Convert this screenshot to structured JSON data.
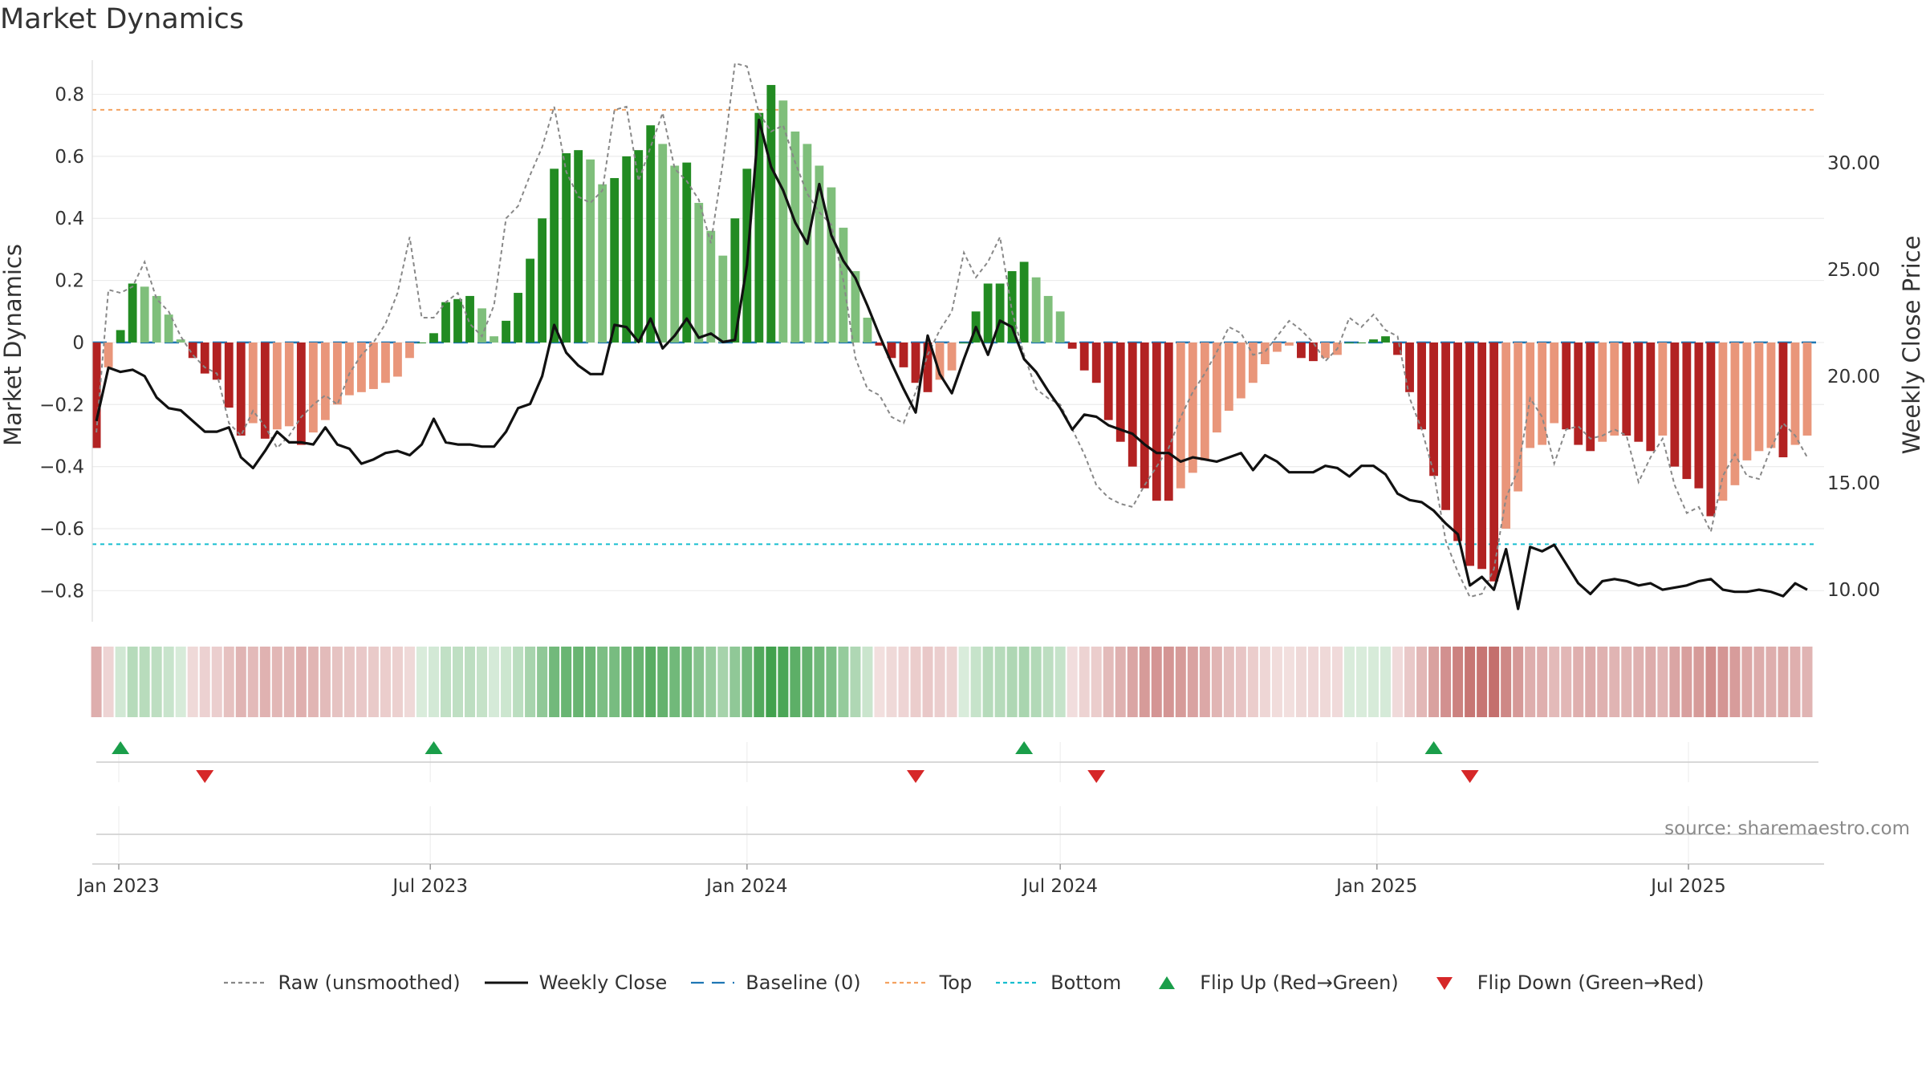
{
  "title": "Market Dynamics",
  "source": "source: sharemaestro.com",
  "legend": [
    {
      "label": "Raw (unsmoothed)",
      "icon": "dotted-line",
      "color": "#888888"
    },
    {
      "label": "Weekly Close",
      "icon": "solid-line",
      "color": "#111111"
    },
    {
      "label": "Baseline (0)",
      "icon": "dashed-line",
      "color": "#1f77b4"
    },
    {
      "label": "Top",
      "icon": "dotted-line",
      "color": "#f4a261"
    },
    {
      "label": "Bottom",
      "icon": "dotted-line",
      "color": "#17becf"
    },
    {
      "label": "Flip Up (Red→Green)",
      "icon": "triangle-up",
      "color": "#1a9e4a"
    },
    {
      "label": "Flip Down (Green→Red)",
      "icon": "triangle-down",
      "color": "#d62728"
    }
  ],
  "chart_data": {
    "type": "bar",
    "ylabel": "Market Dynamics",
    "y2label": "Weekly Close Price",
    "ylim": [
      -0.9,
      0.91
    ],
    "y2lim": [
      8.5,
      34.8
    ],
    "yticks": [
      "0.8",
      "0.6",
      "0.4",
      "0.2",
      "0",
      "−0.2",
      "−0.4",
      "−0.6",
      "−0.8"
    ],
    "yticks_values": [
      0.8,
      0.6,
      0.4,
      0.2,
      0,
      -0.2,
      -0.4,
      -0.6,
      -0.8
    ],
    "y2ticks": [
      "30.00",
      "25.00",
      "20.00",
      "15.00",
      "10.00"
    ],
    "y2ticks_values": [
      30,
      25,
      20,
      15,
      10
    ],
    "xticks": [
      "Jan 2023",
      "Jul 2023",
      "Jan 2024",
      "Jul 2024",
      "Jan 2025",
      "Jul 2025"
    ],
    "xticks_dates": [
      "2023-01-01",
      "2023-07-01",
      "2024-01-01",
      "2024-07-01",
      "2025-01-01",
      "2025-07-01"
    ],
    "top": 0.75,
    "bottom": -0.65,
    "baseline": 0,
    "start_date": "2022-12-19",
    "week_days": 7,
    "bar_values": [
      -0.34,
      -0.08,
      0.04,
      0.19,
      0.18,
      0.15,
      0.09,
      0.01,
      -0.05,
      -0.1,
      -0.12,
      -0.21,
      -0.3,
      -0.26,
      -0.31,
      -0.28,
      -0.27,
      -0.33,
      -0.29,
      -0.25,
      -0.2,
      -0.17,
      -0.16,
      -0.15,
      -0.13,
      -0.11,
      -0.05,
      0.0,
      0.03,
      0.13,
      0.14,
      0.15,
      0.11,
      0.02,
      0.07,
      0.16,
      0.27,
      0.4,
      0.56,
      0.61,
      0.62,
      0.59,
      0.51,
      0.53,
      0.6,
      0.62,
      0.7,
      0.64,
      0.57,
      0.58,
      0.45,
      0.36,
      0.28,
      0.4,
      0.56,
      0.74,
      0.83,
      0.78,
      0.68,
      0.64,
      0.57,
      0.5,
      0.37,
      0.23,
      0.08,
      -0.01,
      -0.05,
      -0.08,
      -0.13,
      -0.16,
      -0.12,
      -0.09,
      0.0,
      0.1,
      0.19,
      0.19,
      0.23,
      0.26,
      0.21,
      0.15,
      0.1,
      -0.02,
      -0.09,
      -0.13,
      -0.25,
      -0.32,
      -0.4,
      -0.47,
      -0.51,
      -0.51,
      -0.47,
      -0.42,
      -0.38,
      -0.29,
      -0.22,
      -0.18,
      -0.13,
      -0.07,
      -0.03,
      -0.01,
      -0.05,
      -0.06,
      -0.05,
      -0.04,
      0.0,
      0.0,
      0.01,
      0.02,
      -0.04,
      -0.16,
      -0.28,
      -0.43,
      -0.54,
      -0.64,
      -0.72,
      -0.73,
      -0.77,
      -0.6,
      -0.48,
      -0.34,
      -0.33,
      -0.26,
      -0.28,
      -0.33,
      -0.35,
      -0.32,
      -0.3,
      -0.3,
      -0.32,
      -0.35,
      -0.3,
      -0.4,
      -0.44,
      -0.47,
      -0.56,
      -0.51,
      -0.46,
      -0.38,
      -0.35,
      -0.34,
      -0.37,
      -0.33,
      -0.3
    ],
    "raw_values": [
      -0.29,
      0.17,
      0.16,
      0.18,
      0.26,
      0.14,
      0.1,
      0.02,
      -0.04,
      -0.08,
      -0.1,
      -0.26,
      -0.3,
      -0.22,
      -0.27,
      -0.34,
      -0.3,
      -0.24,
      -0.2,
      -0.17,
      -0.2,
      -0.1,
      -0.04,
      0.0,
      0.06,
      0.16,
      0.34,
      0.08,
      0.08,
      0.13,
      0.16,
      0.06,
      0.02,
      0.12,
      0.4,
      0.44,
      0.54,
      0.63,
      0.76,
      0.55,
      0.47,
      0.45,
      0.49,
      0.75,
      0.76,
      0.52,
      0.63,
      0.74,
      0.56,
      0.52,
      0.46,
      0.32,
      0.58,
      0.9,
      0.89,
      0.74,
      0.68,
      0.7,
      0.58,
      0.48,
      0.42,
      0.38,
      0.2,
      -0.05,
      -0.15,
      -0.17,
      -0.24,
      -0.26,
      -0.16,
      -0.04,
      0.04,
      0.1,
      0.29,
      0.21,
      0.26,
      0.34,
      0.1,
      -0.04,
      -0.15,
      -0.18,
      -0.2,
      -0.28,
      -0.36,
      -0.46,
      -0.5,
      -0.52,
      -0.53,
      -0.46,
      -0.4,
      -0.34,
      -0.24,
      -0.16,
      -0.1,
      -0.03,
      0.05,
      0.03,
      -0.04,
      -0.03,
      0.02,
      0.07,
      0.04,
      0.0,
      -0.06,
      -0.02,
      0.08,
      0.05,
      0.09,
      0.04,
      0.02,
      -0.18,
      -0.28,
      -0.42,
      -0.64,
      -0.74,
      -0.82,
      -0.81,
      -0.73,
      -0.5,
      -0.41,
      -0.18,
      -0.24,
      -0.39,
      -0.28,
      -0.27,
      -0.31,
      -0.3,
      -0.28,
      -0.3,
      -0.45,
      -0.37,
      -0.31,
      -0.46,
      -0.55,
      -0.53,
      -0.61,
      -0.43,
      -0.36,
      -0.43,
      -0.44,
      -0.34,
      -0.26,
      -0.3,
      -0.37
    ],
    "close_values": [
      17.9,
      20.4,
      20.2,
      20.3,
      20.0,
      19.0,
      18.5,
      18.4,
      17.9,
      17.4,
      17.4,
      17.6,
      16.2,
      15.7,
      16.5,
      17.4,
      16.9,
      16.9,
      16.8,
      17.6,
      16.8,
      16.6,
      15.9,
      16.1,
      16.4,
      16.5,
      16.3,
      16.8,
      18.0,
      16.9,
      16.8,
      16.8,
      16.7,
      16.7,
      17.4,
      18.5,
      18.7,
      20.0,
      22.4,
      21.1,
      20.5,
      20.1,
      20.1,
      22.4,
      22.3,
      21.6,
      22.7,
      21.3,
      21.9,
      22.7,
      21.8,
      22.0,
      21.6,
      21.7,
      25.2,
      32.0,
      29.8,
      28.7,
      27.2,
      26.2,
      29.0,
      26.6,
      25.4,
      24.6,
      23.3,
      21.9,
      20.6,
      19.4,
      18.3,
      21.9,
      20.1,
      19.2,
      20.8,
      22.3,
      21.0,
      22.6,
      22.3,
      20.8,
      20.2,
      19.3,
      18.5,
      17.5,
      18.2,
      18.1,
      17.7,
      17.5,
      17.3,
      16.8,
      16.4,
      16.4,
      16.0,
      16.2,
      16.1,
      16.0,
      16.2,
      16.4,
      15.6,
      16.3,
      16.0,
      15.5,
      15.5,
      15.5,
      15.8,
      15.7,
      15.3,
      15.8,
      15.8,
      15.4,
      14.5,
      14.2,
      14.1,
      13.7,
      13.1,
      12.6,
      10.2,
      10.6,
      10.0,
      11.9,
      9.1,
      12.0,
      11.8,
      12.1,
      11.2,
      10.3,
      9.8,
      10.4,
      10.5,
      10.4,
      10.2,
      10.3,
      10.0,
      10.1,
      10.2,
      10.4,
      10.5,
      10.0,
      9.9,
      9.9,
      10.0,
      9.9,
      9.7,
      10.3,
      10.0
    ],
    "strip_color_pos_max": [
      63,
      160,
      75
    ],
    "strip_color_neg_max": [
      192,
      100,
      98
    ],
    "flips_up_week_index": [
      2,
      28,
      77,
      111
    ],
    "flips_down_week_index": [
      9,
      68,
      83,
      114
    ]
  }
}
